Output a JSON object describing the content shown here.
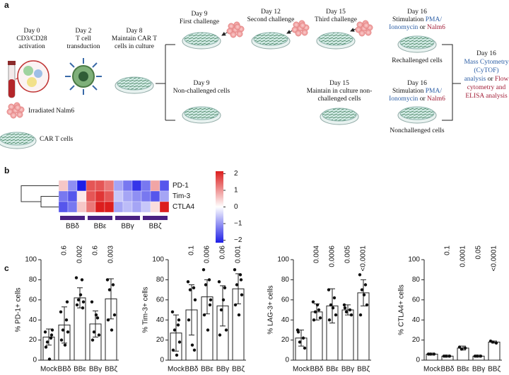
{
  "panel_a": {
    "label": "a",
    "steps": [
      [
        "Day 0",
        "CD3/CD28",
        "activation"
      ],
      [
        "Day 2",
        "T cell",
        "transduction"
      ],
      [
        "Day 8",
        "Maintain CAR T",
        "cells in culture"
      ],
      [
        "Day 9",
        "First challenge"
      ],
      [
        "Day 12",
        "Second challenge"
      ],
      [
        "Day 15",
        "Third challenge"
      ],
      [
        "Day 9",
        "Non-challenged cells"
      ],
      [
        "Day 15",
        "Maintain in culture non-",
        "challenged cells"
      ]
    ],
    "stimulation": [
      {
        "day": "Day 16",
        "words": [
          "Stimulation",
          "PMA/",
          "Ionomycin",
          "or",
          "Nalm6"
        ]
      },
      {
        "day": "Day 16",
        "words": [
          "Stimulation",
          "PMA/",
          "Ionomycin",
          "or",
          "Nalm6"
        ]
      }
    ],
    "outcomes": [
      "Rechallenged cells",
      "Nonchallenged cells"
    ],
    "analysis": {
      "day": "Day 16",
      "lines": [
        [
          "Mass Cytometry"
        ],
        [
          "(CyTOF)"
        ],
        [
          "analysis",
          "or",
          "Flow"
        ],
        [
          "cytometry and"
        ],
        [
          "ELISA analysis"
        ]
      ]
    },
    "legend": [
      "Irradiated Nalm6",
      "CAR T cells"
    ]
  },
  "panel_b": {
    "label": "b",
    "rows": [
      "PD-1",
      "Tim-3",
      "CTLA4"
    ],
    "groups": [
      "BBδ",
      "BBε",
      "BBγ",
      "BBζ"
    ],
    "matrix": [
      [
        0.5,
        -1,
        -2,
        1.5,
        1.5,
        1.2,
        -0.8,
        -1.2,
        -1.8,
        -1.2,
        0.8,
        -1.5
      ],
      [
        -1.2,
        -1.5,
        0.2,
        1.5,
        1.8,
        1.5,
        -0.5,
        -0.8,
        -1,
        -1.2,
        -1.5,
        -0.8
      ],
      [
        -1.5,
        -1.2,
        0.5,
        1.2,
        2,
        2,
        -0.8,
        -0.6,
        -0.8,
        -0.5,
        0.3,
        2
      ]
    ],
    "clim": [
      -2.15,
      2.15
    ],
    "colorbar_ticks": [
      2,
      1,
      0,
      {
        "value": -1,
        "label": "−1"
      },
      {
        "value": -2,
        "label": "−2"
      }
    ]
  },
  "panel_c": {
    "label": "c"
  },
  "chart_data": [
    {
      "type": "bar",
      "ylabel": "% PD-1+ cells",
      "categories": [
        "Mock",
        "BBδ",
        "BBε",
        "BBγ",
        "BBζ"
      ],
      "values": [
        23,
        35,
        62,
        36,
        61
      ],
      "errors": [
        8,
        18,
        10,
        13,
        20
      ],
      "points": [
        [
          28,
          22,
          18,
          30,
          13,
          1,
          25
        ],
        [
          48,
          40,
          30,
          28,
          20,
          15,
          58
        ],
        [
          82,
          80,
          60,
          58,
          55,
          65,
          52
        ],
        [
          58,
          42,
          28,
          25,
          20,
          45
        ],
        [
          80,
          75,
          70,
          45,
          40,
          30
        ]
      ],
      "annotations": [
        "0.6",
        "0.002",
        "0.6",
        "0.003"
      ],
      "ylim": [
        0,
        100
      ],
      "yticks": [
        0,
        20,
        40,
        60,
        80,
        100
      ]
    },
    {
      "type": "bar",
      "ylabel": "% Tim-3+ cells",
      "categories": [
        "Mock",
        "BBδ",
        "BBε",
        "BBγ",
        "BBζ"
      ],
      "values": [
        27,
        50,
        63,
        54,
        71
      ],
      "errors": [
        18,
        25,
        17,
        20,
        15
      ],
      "points": [
        [
          48,
          35,
          30,
          18,
          10,
          5,
          40
        ],
        [
          78,
          72,
          70,
          60,
          40,
          15,
          10
        ],
        [
          90,
          80,
          75,
          60,
          45,
          30,
          55
        ],
        [
          78,
          72,
          50,
          30,
          25,
          60
        ],
        [
          90,
          85,
          75,
          65,
          55,
          45,
          80
        ]
      ],
      "annotations": [
        "0.1",
        "0.006",
        "0.06",
        "0.001"
      ],
      "ylim": [
        0,
        100
      ],
      "yticks": [
        0,
        20,
        40,
        60,
        80,
        100
      ]
    },
    {
      "type": "bar",
      "ylabel": "% LAG-3+ cells",
      "categories": [
        "Mock",
        "BBδ",
        "BBε",
        "BBγ",
        "BBζ"
      ],
      "values": [
        22,
        48,
        54,
        50,
        67
      ],
      "errors": [
        8,
        8,
        17,
        5,
        13
      ],
      "points": [
        [
          30,
          22,
          18,
          12,
          28
        ],
        [
          58,
          50,
          48,
          42,
          40,
          55
        ],
        [
          70,
          62,
          55,
          45,
          40,
          52
        ],
        [
          55,
          50,
          48,
          45,
          52
        ],
        [
          85,
          75,
          70,
          55,
          45,
          65
        ]
      ],
      "annotations": [
        "0.004",
        "0.0006",
        "0.005",
        "<0.0001"
      ],
      "ylim": [
        0,
        100
      ],
      "yticks": [
        0,
        20,
        40,
        60,
        80,
        100
      ]
    },
    {
      "type": "bar",
      "ylabel": "% CTLA4+ cells",
      "categories": [
        "Mock",
        "BBδ",
        "BBε",
        "BBγ",
        "BBζ"
      ],
      "values": [
        6,
        4,
        12,
        4,
        18
      ],
      "errors": [
        1,
        1,
        2,
        1,
        1
      ],
      "points": [
        [
          6,
          6,
          6
        ],
        [
          4,
          4,
          4
        ],
        [
          13,
          12,
          11
        ],
        [
          4,
          4,
          4
        ],
        [
          19,
          17,
          18
        ]
      ],
      "annotations": [
        "0.1",
        "0.0001",
        "0.05",
        "<0.0001"
      ],
      "ylim": [
        0,
        100
      ],
      "yticks": [
        0,
        20,
        40,
        60,
        80,
        100
      ]
    }
  ]
}
